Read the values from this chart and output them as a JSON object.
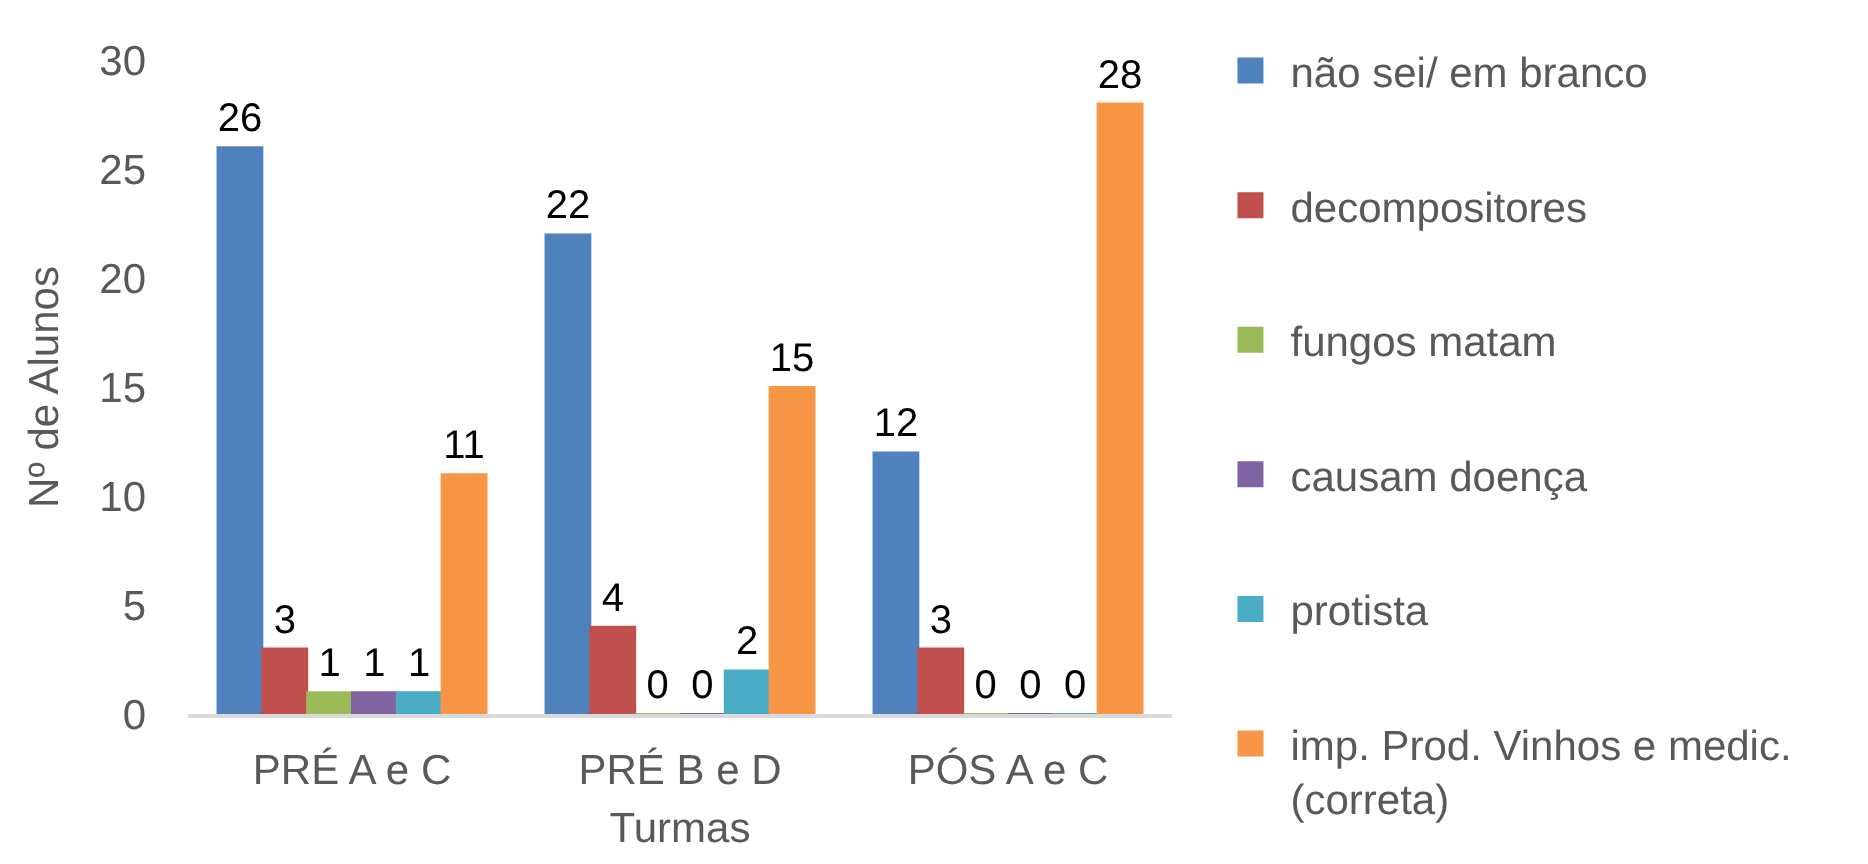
{
  "chart_data": {
    "type": "bar",
    "xlabel": "Turmas",
    "ylabel": "Nº de Alunos",
    "categories": [
      "PRÉ A e C",
      "PRÉ B e D",
      "PÓS A e C"
    ],
    "series": [
      {
        "name": "não sei/ em branco",
        "color": "#4f81bd",
        "values": [
          26,
          22,
          12
        ]
      },
      {
        "name": "decompositores",
        "color": "#c0504d",
        "values": [
          3,
          4,
          3
        ]
      },
      {
        "name": "fungos matam",
        "color": "#9bbb59",
        "values": [
          1,
          0,
          0
        ]
      },
      {
        "name": "causam doença",
        "color": "#8064a2",
        "values": [
          1,
          0,
          0
        ]
      },
      {
        "name": "protista",
        "color": "#4bacc6",
        "values": [
          1,
          2,
          0
        ]
      },
      {
        "name": "imp. Prod. Vinhos e medic. (correta)",
        "color": "#f79646",
        "values": [
          11,
          15,
          28
        ]
      }
    ],
    "ylim": [
      0,
      30
    ],
    "yticks": [
      0,
      5,
      10,
      15,
      20,
      25,
      30
    ],
    "grid": false,
    "legend": "right",
    "data_labels": true
  }
}
